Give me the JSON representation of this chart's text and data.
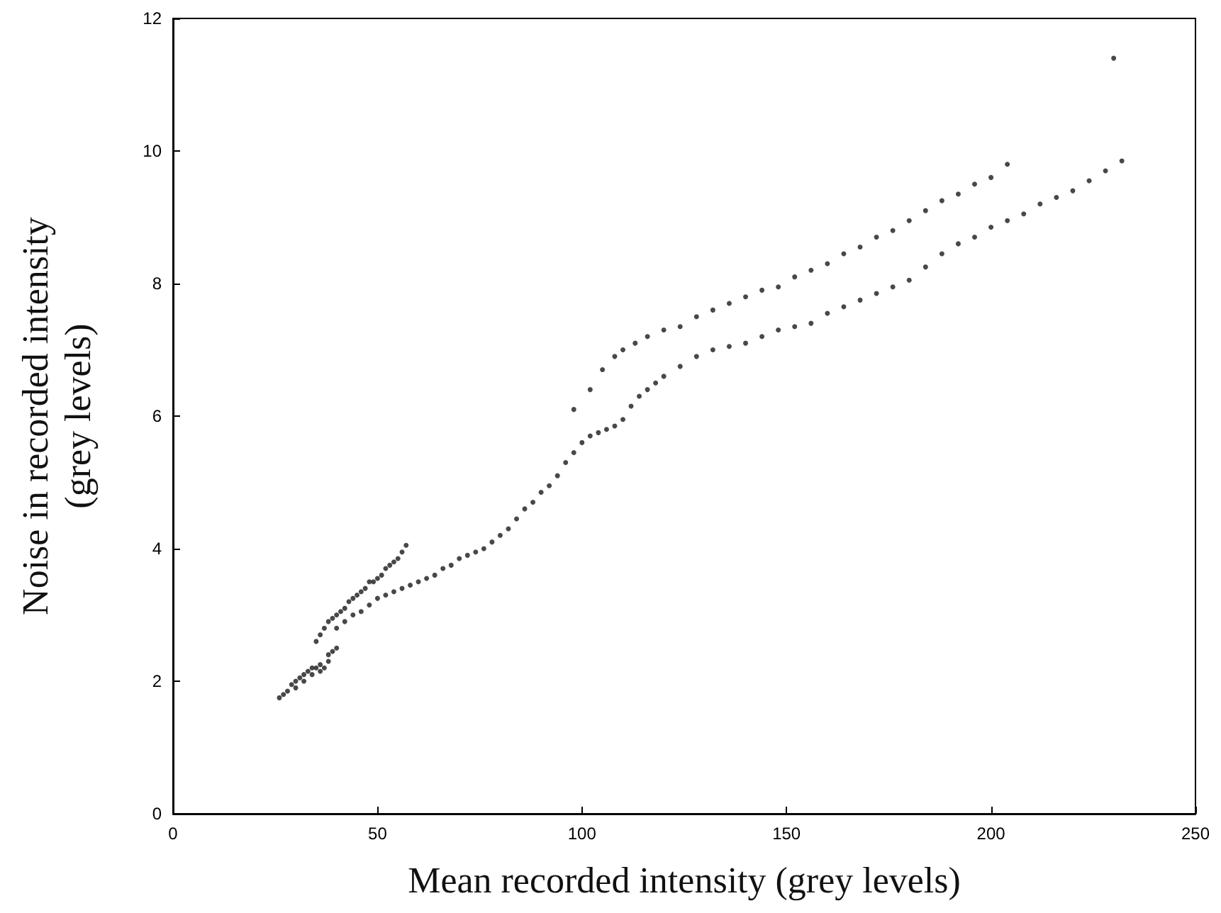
{
  "chart_data": {
    "type": "scatter",
    "xlabel": "Mean recorded intensity (grey levels)",
    "ylabel": "Noise in recorded intensity\n(grey levels)",
    "xlim": [
      0,
      250
    ],
    "xticks": [
      0,
      50,
      100,
      150,
      200,
      250
    ],
    "ylim": [
      0,
      12
    ],
    "yticks": [
      0,
      2,
      4,
      6,
      8,
      10,
      12
    ],
    "grid": false,
    "marker": "circle",
    "series": [
      {
        "color": "#1a1a1a",
        "x": [
          26,
          27,
          28,
          29,
          30,
          30,
          31,
          32,
          32,
          33,
          34,
          34,
          35,
          36,
          36,
          37,
          38,
          38,
          39,
          40,
          35,
          36,
          37,
          38,
          39,
          40,
          41,
          42,
          43,
          44,
          45,
          46,
          47,
          48,
          49,
          50,
          51,
          52,
          53,
          54,
          55,
          56,
          57,
          40,
          42,
          44,
          46,
          48,
          50,
          52,
          54,
          56,
          58,
          60,
          62,
          64,
          66,
          68,
          70,
          72,
          74,
          76,
          78,
          80,
          82,
          84,
          86,
          88,
          90,
          92,
          94,
          96,
          98,
          100,
          102,
          104,
          106,
          108,
          110,
          112,
          114,
          116,
          118,
          120,
          124,
          128,
          132,
          136,
          140,
          144,
          148,
          152,
          156,
          160,
          164,
          168,
          172,
          176,
          180,
          184,
          188,
          192,
          196,
          200,
          204,
          208,
          212,
          216,
          220,
          224,
          228,
          232,
          98,
          102,
          105,
          108,
          110,
          113,
          116,
          120,
          124,
          128,
          132,
          136,
          140,
          144,
          148,
          152,
          156,
          160,
          164,
          168,
          172,
          176,
          180,
          184,
          188,
          192,
          196,
          200,
          204,
          230
        ],
        "values": [
          1.75,
          1.8,
          1.85,
          1.95,
          1.9,
          2.0,
          2.05,
          2.1,
          2.0,
          2.15,
          2.1,
          2.2,
          2.2,
          2.15,
          2.25,
          2.2,
          2.3,
          2.4,
          2.45,
          2.5,
          2.6,
          2.7,
          2.8,
          2.9,
          2.95,
          3.0,
          3.05,
          3.1,
          3.2,
          3.25,
          3.3,
          3.35,
          3.4,
          3.5,
          3.5,
          3.55,
          3.6,
          3.7,
          3.75,
          3.8,
          3.85,
          3.95,
          4.05,
          2.8,
          2.9,
          3.0,
          3.05,
          3.15,
          3.25,
          3.3,
          3.35,
          3.4,
          3.45,
          3.5,
          3.55,
          3.6,
          3.7,
          3.75,
          3.85,
          3.9,
          3.95,
          4.0,
          4.1,
          4.2,
          4.3,
          4.45,
          4.6,
          4.7,
          4.85,
          4.95,
          5.1,
          5.3,
          5.45,
          5.6,
          5.7,
          5.75,
          5.8,
          5.85,
          5.95,
          6.15,
          6.3,
          6.4,
          6.5,
          6.6,
          6.75,
          6.9,
          7.0,
          7.05,
          7.1,
          7.2,
          7.3,
          7.35,
          7.4,
          7.55,
          7.65,
          7.75,
          7.85,
          7.95,
          8.05,
          8.25,
          8.45,
          8.6,
          8.7,
          8.85,
          8.95,
          9.05,
          9.2,
          9.3,
          9.4,
          9.55,
          9.7,
          9.85,
          6.1,
          6.4,
          6.7,
          6.9,
          7.0,
          7.1,
          7.2,
          7.3,
          7.35,
          7.5,
          7.6,
          7.7,
          7.8,
          7.9,
          7.95,
          8.1,
          8.2,
          8.3,
          8.45,
          8.55,
          8.7,
          8.8,
          8.95,
          9.1,
          9.25,
          9.35,
          9.5,
          9.6,
          9.8,
          11.4
        ]
      }
    ]
  }
}
